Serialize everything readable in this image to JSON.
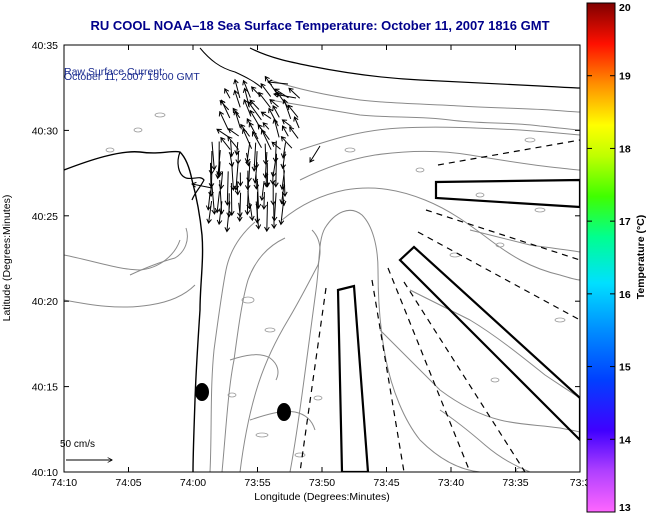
{
  "map": {
    "title": "RU COOL  NOAA–18  Sea Surface Temperature:  October 11, 2007 1816 GMT",
    "subtitle_line1": "Raw Surface Current:",
    "subtitle_line2": "October 11, 2007 19:00 GMT",
    "x_axis_label": "Longitude (Degrees:Minutes)",
    "y_axis_label": "Latitude (Degrees:Minutes)",
    "x_ticks": [
      "74:10",
      "74:05",
      "74:00",
      "73:55",
      "73:50",
      "73:45",
      "73:40",
      "73:35",
      "73:3"
    ],
    "y_ticks": [
      "40:35",
      "40:30",
      "40:25",
      "40:20",
      "40:15",
      "40:10"
    ],
    "scale_label": "50 cm/s",
    "title_color": "#00008B",
    "subtitle_color": "#1a2b8f"
  },
  "colorbar": {
    "label": "Temperature (°C)",
    "ticks": [
      "20",
      "19",
      "18",
      "17",
      "16",
      "15",
      "14",
      "13"
    ],
    "min": 13,
    "max": 20,
    "colors": [
      "#ff66ff",
      "#8000ff",
      "#0000ff",
      "#0080ff",
      "#00ffff",
      "#00ff80",
      "#80ff00",
      "#ffff00",
      "#ff8000",
      "#ff0000",
      "#800000"
    ]
  }
}
